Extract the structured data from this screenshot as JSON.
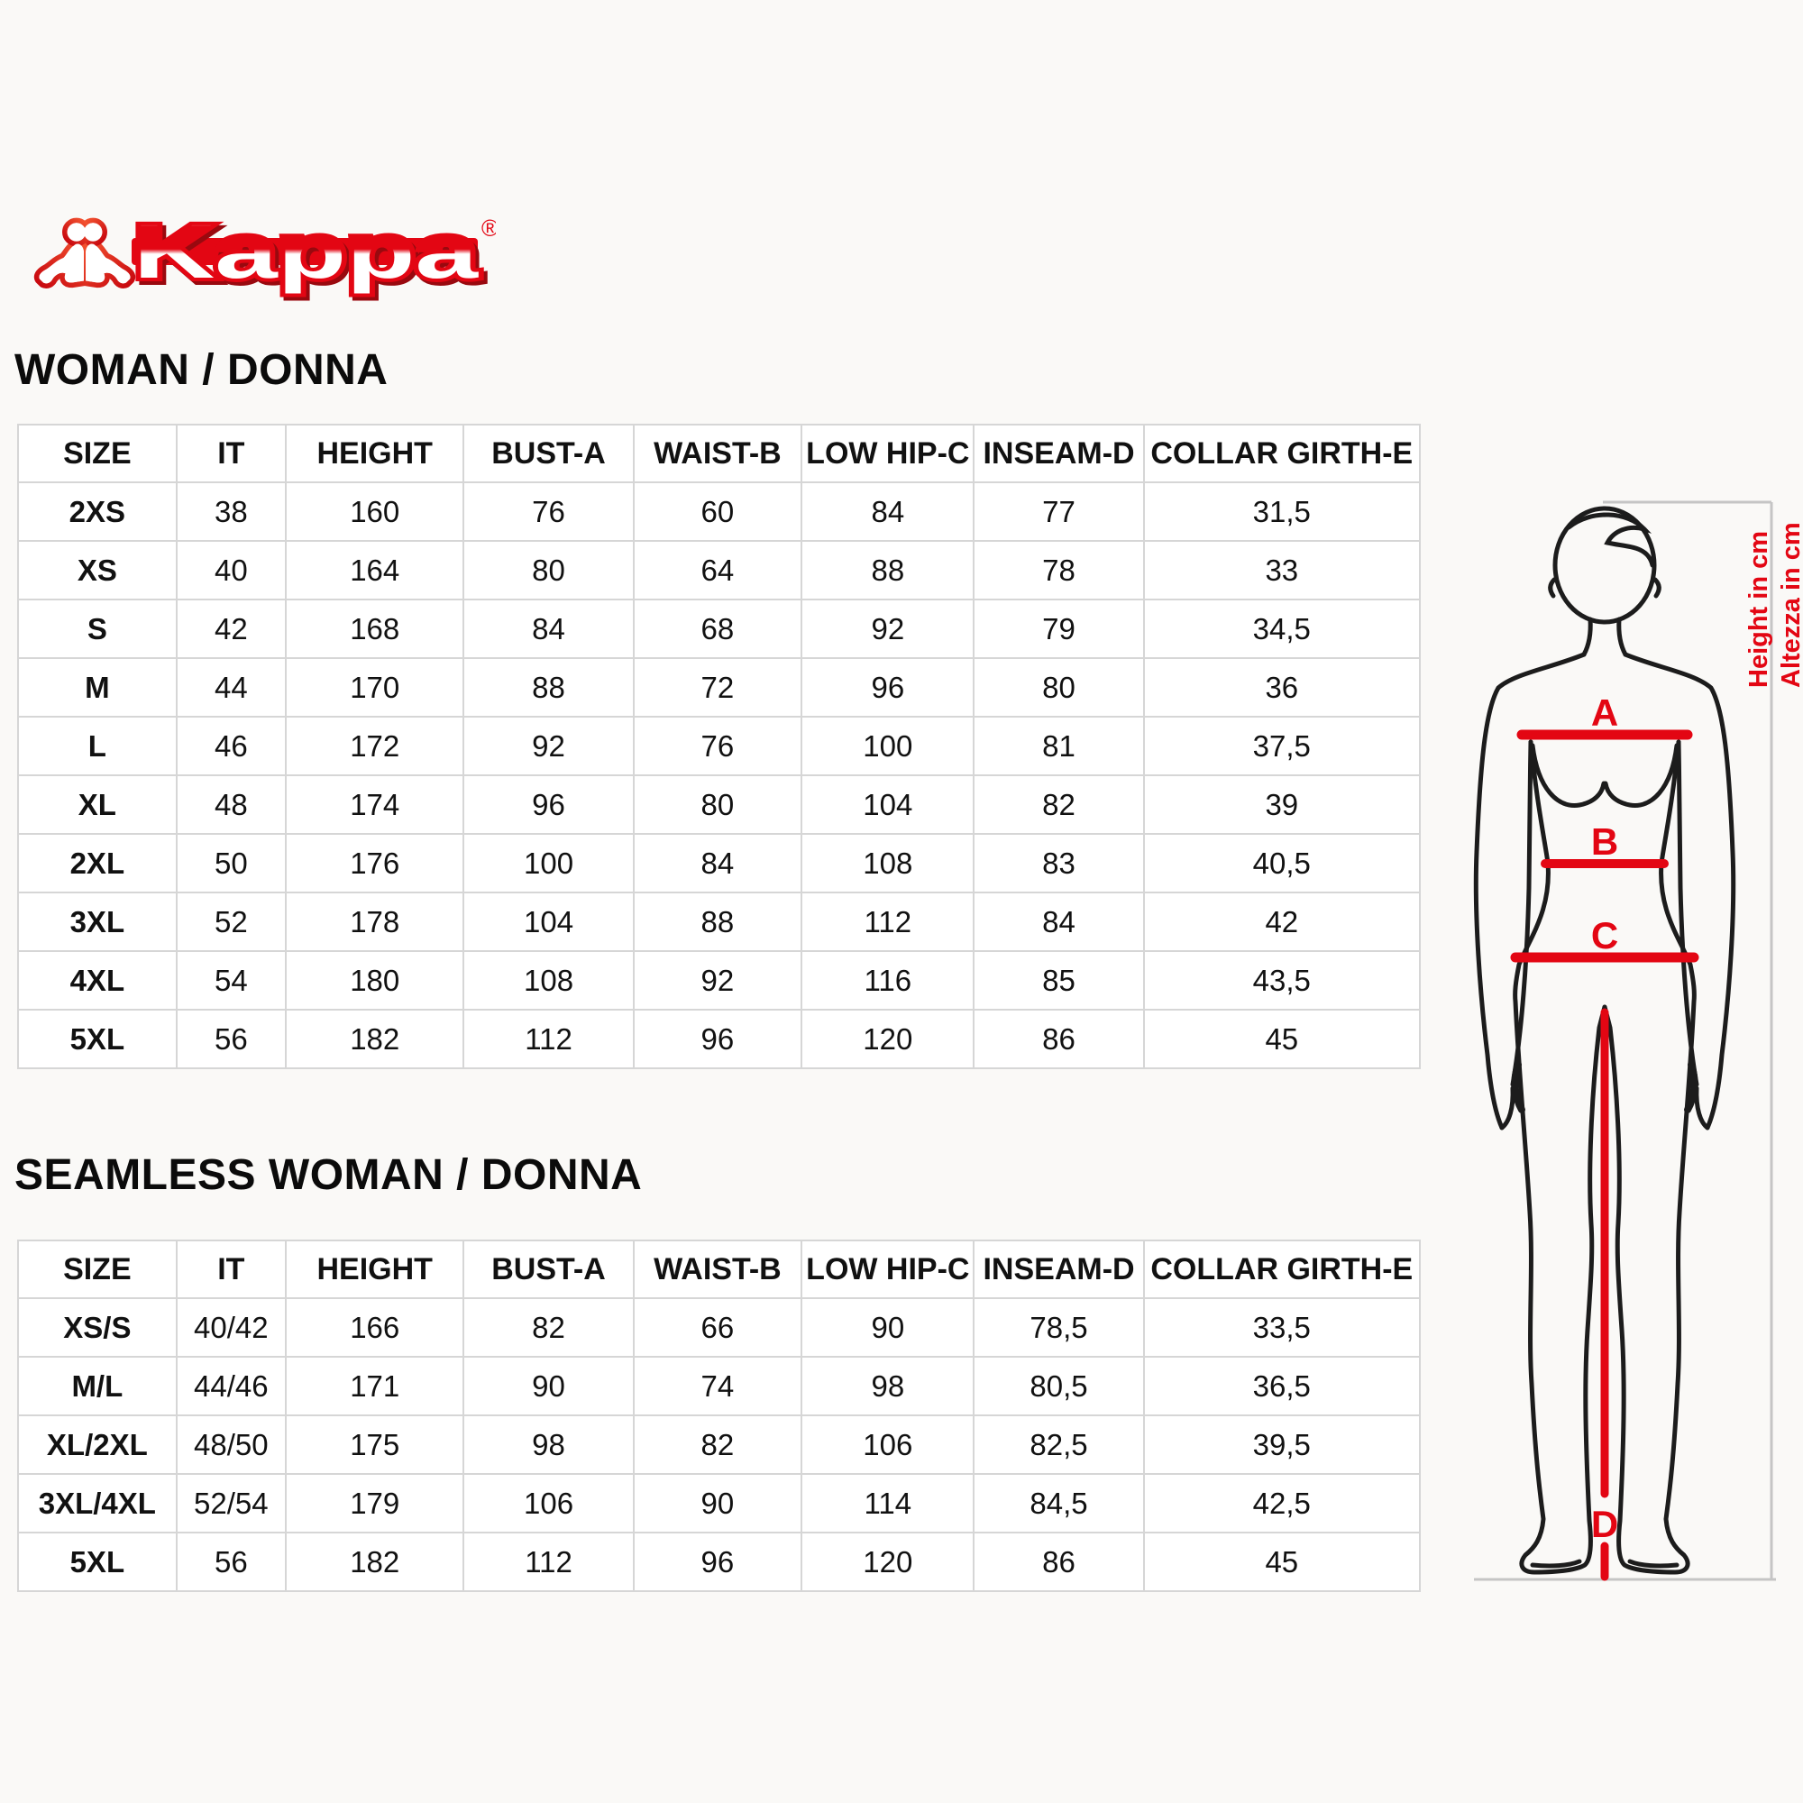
{
  "brand": {
    "name": "Kappa",
    "registered": "®"
  },
  "woman_table": {
    "title": "WOMAN / DONNA",
    "headers": [
      "SIZE",
      "IT",
      "HEIGHT",
      "BUST-A",
      "WAIST-B",
      "LOW HIP-C",
      "INSEAM-D",
      "COLLAR GIRTH-E"
    ],
    "rows": [
      [
        "2XS",
        "38",
        "160",
        "76",
        "60",
        "84",
        "77",
        "31,5"
      ],
      [
        "XS",
        "40",
        "164",
        "80",
        "64",
        "88",
        "78",
        "33"
      ],
      [
        "S",
        "42",
        "168",
        "84",
        "68",
        "92",
        "79",
        "34,5"
      ],
      [
        "M",
        "44",
        "170",
        "88",
        "72",
        "96",
        "80",
        "36"
      ],
      [
        "L",
        "46",
        "172",
        "92",
        "76",
        "100",
        "81",
        "37,5"
      ],
      [
        "XL",
        "48",
        "174",
        "96",
        "80",
        "104",
        "82",
        "39"
      ],
      [
        "2XL",
        "50",
        "176",
        "100",
        "84",
        "108",
        "83",
        "40,5"
      ],
      [
        "3XL",
        "52",
        "178",
        "104",
        "88",
        "112",
        "84",
        "42"
      ],
      [
        "4XL",
        "54",
        "180",
        "108",
        "92",
        "116",
        "85",
        "43,5"
      ],
      [
        "5XL",
        "56",
        "182",
        "112",
        "96",
        "120",
        "86",
        "45"
      ]
    ]
  },
  "seamless_table": {
    "title": "SEAMLESS WOMAN / DONNA",
    "headers": [
      "SIZE",
      "IT",
      "HEIGHT",
      "BUST-A",
      "WAIST-B",
      "LOW HIP-C",
      "INSEAM-D",
      "COLLAR GIRTH-E"
    ],
    "rows": [
      [
        "XS/S",
        "40/42",
        "166",
        "82",
        "66",
        "90",
        "78,5",
        "33,5"
      ],
      [
        "M/L",
        "44/46",
        "171",
        "90",
        "74",
        "98",
        "80,5",
        "36,5"
      ],
      [
        "XL/2XL",
        "48/50",
        "175",
        "98",
        "82",
        "106",
        "82,5",
        "39,5"
      ],
      [
        "3XL/4XL",
        "52/54",
        "179",
        "106",
        "90",
        "114",
        "84,5",
        "42,5"
      ],
      [
        "5XL",
        "56",
        "182",
        "112",
        "96",
        "120",
        "86",
        "45"
      ]
    ]
  },
  "figure": {
    "bust_label": "A",
    "waist_label": "B",
    "hip_label": "C",
    "inseam_label": "D",
    "height_unit_en": "Height in cm",
    "height_unit_it": "Altezza in cm"
  },
  "colors": {
    "kappa_red": "#e30613",
    "table_border": "#d6d6d6",
    "measure_gray": "#c5c5c5",
    "ink": "#111111",
    "background": "#faf9f7"
  }
}
